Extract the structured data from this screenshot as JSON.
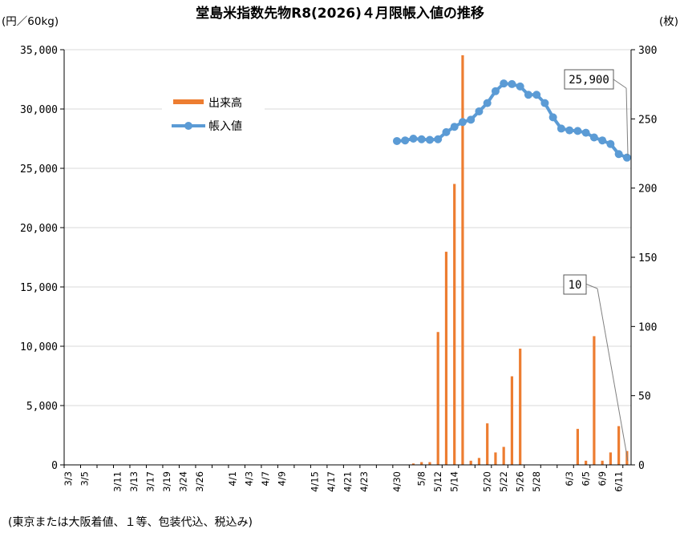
{
  "chart_data": {
    "type": "bar+line",
    "title": "堂島米指数先物R8(2026)４月限帳入値の推移",
    "left_unit": "(円／60kg)",
    "right_unit": "(枚)",
    "footnote": "(東京または大阪着値、１等、包装代込、税込み)",
    "left_axis": {
      "min": 0,
      "max": 35000,
      "step": 5000,
      "labels": [
        "0",
        "5,000",
        "10,000",
        "15,000",
        "20,000",
        "25,000",
        "30,000",
        "35,000"
      ]
    },
    "right_axis": {
      "min": 0,
      "max": 300,
      "step": 50,
      "labels": [
        "0",
        "50",
        "100",
        "150",
        "200",
        "250",
        "300"
      ]
    },
    "x_labels": [
      "3/3",
      "3/5",
      "3/7",
      "3/11",
      "3/13",
      "3/17",
      "3/19",
      "3/24",
      "3/26",
      "3/28",
      "4/1",
      "4/3",
      "4/7",
      "4/9",
      "4/11",
      "4/15",
      "4/17",
      "4/21",
      "4/23",
      "4/25",
      "4/30",
      "5/2",
      "5/8",
      "5/12",
      "5/14",
      "5/16",
      "5/20",
      "5/22",
      "5/26",
      "5/28",
      "5/30",
      "6/3",
      "6/5",
      "6/9",
      "6/11"
    ],
    "grid": true,
    "legend": {
      "position": "upper-left",
      "items": [
        "出来高",
        "帳入値"
      ]
    },
    "colors": {
      "bar": "#ED7D31",
      "line": "#5B9BD5",
      "marker": "#5B9BD5",
      "grid": "#D9D9D9",
      "axis": "#000000"
    },
    "series": [
      {
        "name": "帳入値",
        "axis": "left",
        "type": "line",
        "x": [
          "4/30",
          "5/1",
          "5/2",
          "5/7",
          "5/8",
          "5/11",
          "5/12",
          "5/13",
          "5/14",
          "5/15",
          "5/18",
          "5/19",
          "5/20",
          "5/21",
          "5/22",
          "5/25",
          "5/26",
          "5/27",
          "5/28",
          "5/29",
          "6/1",
          "6/2",
          "6/3",
          "6/4",
          "6/5",
          "6/8",
          "6/9",
          "6/10",
          "6/11",
          "6/12"
        ],
        "values": [
          27300,
          27350,
          27350,
          27500,
          27450,
          27400,
          27450,
          28050,
          28500,
          28900,
          29100,
          29800,
          30500,
          31500,
          32150,
          32100,
          31900,
          31200,
          31200,
          30500,
          29300,
          28350,
          28200,
          28150,
          28000,
          27600,
          27350,
          27050,
          26200,
          25900
        ]
      },
      {
        "name": "出来高",
        "axis": "right",
        "type": "bar",
        "x": [
          "5/7",
          "5/8",
          "5/11",
          "5/12",
          "5/13",
          "5/14",
          "5/15",
          "5/18",
          "5/19",
          "5/20",
          "5/21",
          "5/22",
          "5/25",
          "5/26",
          "6/4",
          "6/5",
          "6/8",
          "6/9",
          "6/10",
          "6/11",
          "6/12"
        ],
        "values": [
          1,
          2,
          2,
          96,
          154,
          203,
          296,
          3,
          5,
          30,
          9,
          13,
          64,
          84,
          26,
          3,
          93,
          3,
          9,
          28,
          10
        ]
      }
    ],
    "annotations": [
      {
        "text": "25,900",
        "points_to": "帳入値 6/12"
      },
      {
        "text": "10",
        "points_to": "出来高 6/12"
      }
    ]
  }
}
